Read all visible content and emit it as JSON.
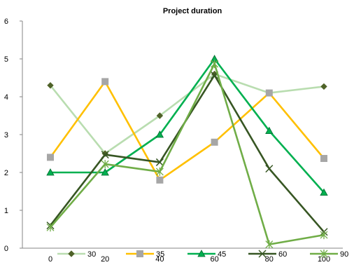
{
  "chart_data": {
    "type": "line",
    "title": "Project duration",
    "xlabel": "",
    "ylabel": "",
    "x": [
      0,
      20,
      40,
      60,
      80,
      100
    ],
    "ylim": [
      0,
      6
    ],
    "yticks": [
      0,
      1,
      2,
      3,
      4,
      5,
      6
    ],
    "grid": false,
    "legend_position": "bottom",
    "series": [
      {
        "name": "30",
        "values": [
          4.3,
          2.5,
          3.5,
          4.6,
          4.1,
          4.27
        ],
        "color": "#b9ddb0",
        "marker": "diamond"
      },
      {
        "name": "35",
        "values": [
          2.4,
          4.4,
          1.8,
          2.8,
          4.1,
          2.37
        ],
        "color": "#ffc000",
        "marker": "square"
      },
      {
        "name": "45",
        "values": [
          2.0,
          2.0,
          3.0,
          5.0,
          3.1,
          1.47
        ],
        "color": "#00b050",
        "marker": "triangle"
      },
      {
        "name": "60",
        "values": [
          0.6,
          2.47,
          2.27,
          4.57,
          2.1,
          0.43
        ],
        "color": "#375623",
        "marker": "x"
      },
      {
        "name": "90",
        "values": [
          0.55,
          2.22,
          2.02,
          4.87,
          0.1,
          0.35
        ],
        "color": "#70ad47",
        "marker": "star"
      }
    ]
  }
}
